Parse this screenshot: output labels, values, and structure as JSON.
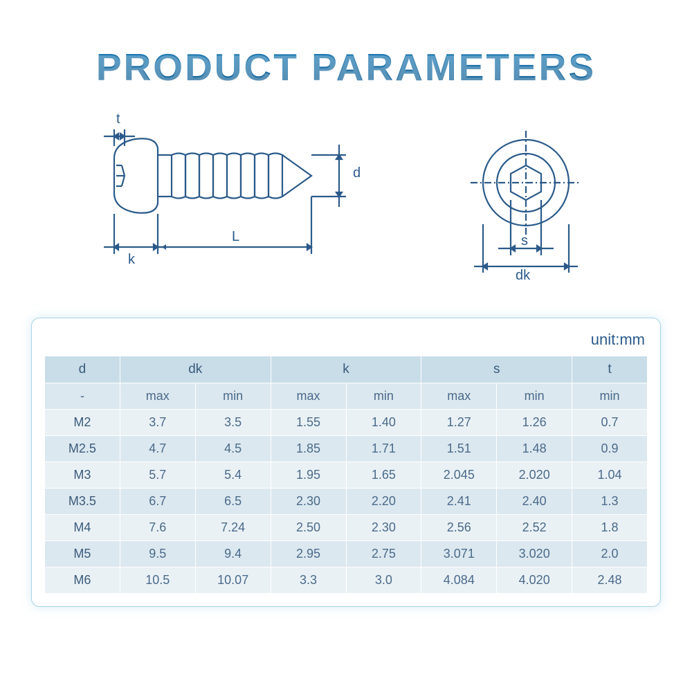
{
  "title": "PRODUCT PARAMETERS",
  "diagram": {
    "stroke": "#2a5a8a",
    "labels": {
      "t": "t",
      "d": "d",
      "k": "k",
      "L": "L",
      "s": "s",
      "dk": "dk"
    }
  },
  "table": {
    "unit_label": "unit:mm",
    "header_bg_1": "#c8dde8",
    "header_bg_2": "#dce8ef",
    "row_bg_odd": "#eaf1f5",
    "row_bg_even": "#dce8ef",
    "text_color": "#4a6a8a",
    "columns_top": [
      "d",
      "dk",
      "k",
      "s",
      "t"
    ],
    "columns_sub": [
      "-",
      "max",
      "min",
      "max",
      "min",
      "max",
      "min",
      "min"
    ],
    "rows": [
      [
        "M2",
        "3.7",
        "3.5",
        "1.55",
        "1.40",
        "1.27",
        "1.26",
        "0.7"
      ],
      [
        "M2.5",
        "4.7",
        "4.5",
        "1.85",
        "1.71",
        "1.51",
        "1.48",
        "0.9"
      ],
      [
        "M3",
        "5.7",
        "5.4",
        "1.95",
        "1.65",
        "2.045",
        "2.020",
        "1.04"
      ],
      [
        "M3.5",
        "6.7",
        "6.5",
        "2.30",
        "2.20",
        "2.41",
        "2.40",
        "1.3"
      ],
      [
        "M4",
        "7.6",
        "7.24",
        "2.50",
        "2.30",
        "2.56",
        "2.52",
        "1.8"
      ],
      [
        "M5",
        "9.5",
        "9.4",
        "2.95",
        "2.75",
        "3.071",
        "3.020",
        "2.0"
      ],
      [
        "M6",
        "10.5",
        "10.07",
        "3.3",
        "3.0",
        "4.084",
        "4.020",
        "2.48"
      ]
    ]
  }
}
